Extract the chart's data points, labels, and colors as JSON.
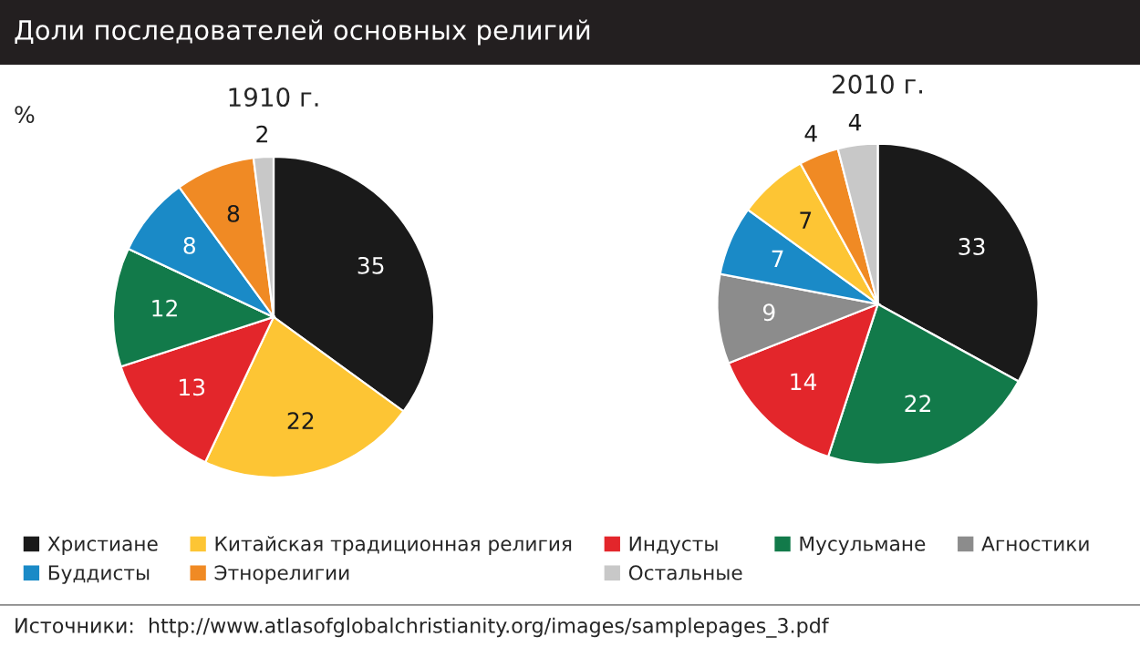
{
  "chart_data": [
    {
      "type": "pie",
      "title": "Доли последователей основных религий",
      "subtitle": "1910 г.",
      "legend": "bottom",
      "categories": [
        "Христиане",
        "Китайская традиционная религия",
        "Индусты",
        "Мусульмане",
        "Агностики",
        "Буддисты",
        "Этнорелигии",
        "Остальные"
      ],
      "values": [
        35,
        22,
        13,
        12,
        0,
        8,
        8,
        2
      ],
      "value_labels": [
        "35",
        "22",
        "13",
        "12",
        null,
        "8",
        "8",
        "2"
      ],
      "colors": [
        "#1a1a1a",
        "#fdc534",
        "#e3262b",
        "#127a4a",
        "#8c8c8c",
        "#1a8ac7",
        "#f08a24",
        "#c8c8c8"
      ],
      "annotations": [
        "%",
        "Источники:  http://www.atlasofglobalchristianity.org/images/samplepages_3.pdf"
      ]
    },
    {
      "type": "pie",
      "subtitle": "2010 г.",
      "categories": [
        null,
        null,
        null,
        null,
        null,
        null,
        null,
        null
      ],
      "values": [
        33,
        22,
        14,
        9,
        7,
        7,
        4,
        4
      ],
      "data_labels": true,
      "colors": [
        "#1a1a1a",
        "#127a4a",
        "#e3262b",
        "#8c8c8c",
        "#1a8ac7",
        "#fdc534",
        "#f08a24",
        "#c8c8c8"
      ]
    }
  ]
}
